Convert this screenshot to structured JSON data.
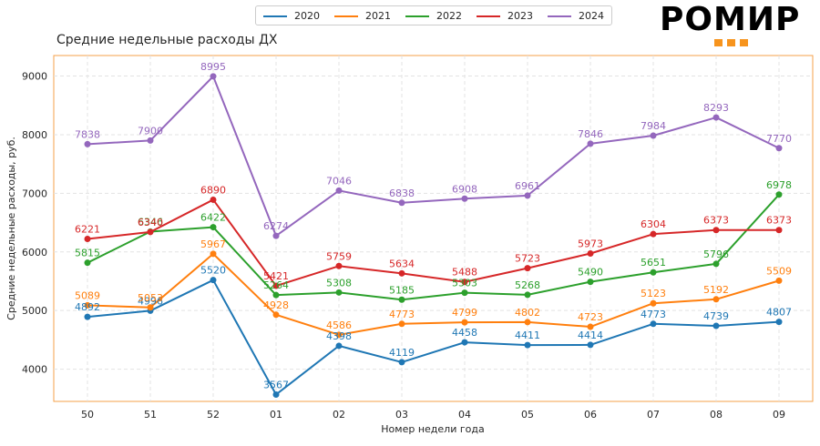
{
  "brand": {
    "name": "РОМИР",
    "accent": "#f7941d"
  },
  "chart_data": {
    "type": "line",
    "title": "Средние недельные расходы ДХ",
    "xlabel": "Номер недели года",
    "ylabel": "Средние недельные расходы, руб.",
    "categories": [
      "50",
      "51",
      "52",
      "01",
      "02",
      "03",
      "04",
      "05",
      "06",
      "07",
      "08",
      "09"
    ],
    "ylim": [
      3450,
      9350
    ],
    "yticks": [
      "4000",
      "5000",
      "6000",
      "7000",
      "8000",
      "9000"
    ],
    "grid": true,
    "legend_position": "top-center",
    "series": [
      {
        "name": "2020",
        "color": "#1f77b4",
        "values": [
          4892,
          4996,
          5520,
          3567,
          4398,
          4119,
          4458,
          4411,
          4414,
          4773,
          4739,
          4807
        ],
        "labels": [
          "4892",
          "4996",
          "5520",
          "3567",
          "4398",
          "4119",
          "4458",
          "4411",
          "4414",
          "4773",
          "4739",
          "4807"
        ]
      },
      {
        "name": "2021",
        "color": "#ff7f0e",
        "values": [
          5089,
          5053,
          5967,
          4928,
          4586,
          4773,
          4799,
          4802,
          4723,
          5123,
          5192,
          5509
        ],
        "labels": [
          "5089",
          "5053",
          "5967",
          "4928",
          "4586",
          "4773",
          "4799",
          "4802",
          "4723",
          "5123",
          "5192",
          "5509"
        ]
      },
      {
        "name": "2022",
        "color": "#2ca02c",
        "values": [
          5815,
          6346,
          6422,
          5264,
          5308,
          5185,
          5303,
          5268,
          5490,
          5651,
          5796,
          6978
        ],
        "labels": [
          "5815",
          "6346",
          "6422",
          "5264",
          "5308",
          "5185",
          "5303",
          "5268",
          "5490",
          "5651",
          "5796",
          "6978"
        ]
      },
      {
        "name": "2023",
        "color": "#d62728",
        "values": [
          6221,
          6340,
          6890,
          5421,
          5759,
          5634,
          5488,
          5723,
          5973,
          6304,
          6373,
          6373
        ],
        "labels": [
          "6221",
          "6340",
          "6890",
          "5421",
          "5759",
          "5634",
          "5488",
          "5723",
          "5973",
          "6304",
          "6373",
          "6373"
        ]
      },
      {
        "name": "2024",
        "color": "#9467bd",
        "values": [
          7838,
          7900,
          8995,
          6274,
          7046,
          6838,
          6908,
          6961,
          7846,
          7984,
          8293,
          7770
        ],
        "labels": [
          "7838",
          "7900",
          "8995",
          "6274",
          "7046",
          "6838",
          "6908",
          "6961",
          "7846",
          "7984",
          "8293",
          "7770"
        ]
      }
    ]
  }
}
